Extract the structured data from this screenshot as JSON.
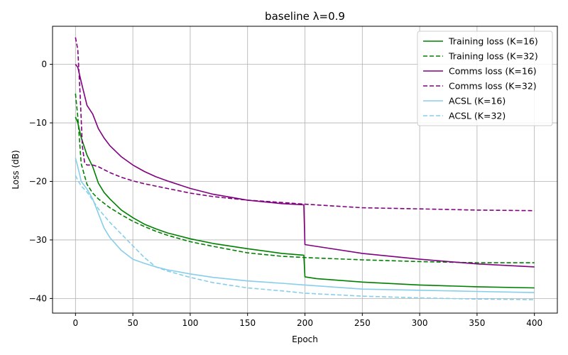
{
  "chart_data": {
    "type": "line",
    "title": "baseline λ=0.9",
    "xlabel": "Epoch",
    "ylabel": "Loss (dB)",
    "xlim": [
      -20,
      420
    ],
    "ylim": [
      -42.5,
      6.5
    ],
    "xticks": [
      0,
      50,
      100,
      150,
      200,
      250,
      300,
      350,
      400
    ],
    "yticks": [
      0,
      -10,
      -20,
      -30,
      -40
    ],
    "xtick_labels": [
      "0",
      "50",
      "100",
      "150",
      "200",
      "250",
      "300",
      "350",
      "400"
    ],
    "ytick_labels": [
      "0",
      "−10",
      "−20",
      "−30",
      "−40"
    ],
    "grid": true,
    "legend_position": "top-right",
    "series": [
      {
        "name": "Training loss (K=16)",
        "color": "#008000",
        "dash": "solid",
        "x": [
          0,
          2,
          5,
          10,
          15,
          20,
          25,
          30,
          40,
          50,
          60,
          70,
          80,
          100,
          120,
          150,
          180,
          199,
          200,
          210,
          250,
          300,
          350,
          400
        ],
        "y": [
          -9,
          -10,
          -12.5,
          -15.5,
          -17.5,
          -20.3,
          -21.9,
          -23.0,
          -24.9,
          -26.2,
          -27.3,
          -28.1,
          -28.8,
          -29.8,
          -30.6,
          -31.5,
          -32.3,
          -32.6,
          -36.3,
          -36.6,
          -37.2,
          -37.7,
          -38.0,
          -38.2
        ]
      },
      {
        "name": "Training loss (K=32)",
        "color": "#008000",
        "dash": "dashed",
        "x": [
          0,
          2,
          5,
          10,
          15,
          20,
          30,
          40,
          50,
          60,
          70,
          80,
          100,
          120,
          150,
          180,
          200,
          250,
          300,
          350,
          400
        ],
        "y": [
          -5,
          -9,
          -17,
          -20.5,
          -22,
          -23,
          -24.5,
          -25.7,
          -26.8,
          -27.7,
          -28.5,
          -29.2,
          -30.3,
          -31.1,
          -32.2,
          -32.8,
          -33.0,
          -33.4,
          -33.7,
          -33.9,
          -33.9
        ]
      },
      {
        "name": "Comms loss (K=16)",
        "color": "#800080",
        "dash": "solid",
        "x": [
          0,
          2,
          5,
          10,
          15,
          20,
          25,
          30,
          40,
          50,
          60,
          70,
          80,
          100,
          120,
          150,
          180,
          199,
          200,
          210,
          250,
          300,
          350,
          400
        ],
        "y": [
          0,
          -0.5,
          -3,
          -7,
          -8.5,
          -11,
          -12.6,
          -13.9,
          -15.8,
          -17.2,
          -18.3,
          -19.2,
          -19.9,
          -21.2,
          -22.2,
          -23.2,
          -23.8,
          -24.0,
          -30.8,
          -31.1,
          -32.3,
          -33.3,
          -34.1,
          -34.6
        ]
      },
      {
        "name": "Comms loss (K=32)",
        "color": "#800080",
        "dash": "dashed",
        "x": [
          0,
          2,
          4,
          6,
          8,
          10,
          15,
          20,
          30,
          40,
          50,
          60,
          70,
          80,
          100,
          120,
          150,
          180,
          200,
          250,
          300,
          350,
          400
        ],
        "y": [
          4.6,
          2.5,
          -5,
          -14,
          -16.8,
          -17.2,
          -17.2,
          -17.5,
          -18.5,
          -19.3,
          -19.9,
          -20.4,
          -20.8,
          -21.2,
          -22.0,
          -22.6,
          -23.2,
          -23.6,
          -23.9,
          -24.5,
          -24.7,
          -24.9,
          -25.0
        ]
      },
      {
        "name": "ACSL (K=16)",
        "color": "#87ceeb",
        "dash": "solid",
        "x": [
          0,
          2,
          5,
          10,
          15,
          20,
          25,
          30,
          40,
          50,
          60,
          70,
          80,
          100,
          120,
          150,
          180,
          200,
          250,
          300,
          350,
          400
        ],
        "y": [
          -16,
          -17.5,
          -20,
          -21.3,
          -23,
          -25.5,
          -28,
          -29.6,
          -31.8,
          -33.3,
          -34.0,
          -34.6,
          -35.1,
          -35.8,
          -36.4,
          -37.0,
          -37.4,
          -37.7,
          -38.4,
          -38.6,
          -38.8,
          -39.0
        ]
      },
      {
        "name": "ACSL (K=32)",
        "color": "#87ceeb",
        "dash": "dashed",
        "x": [
          0,
          2,
          5,
          10,
          15,
          20,
          30,
          40,
          50,
          60,
          70,
          80,
          100,
          120,
          150,
          180,
          200,
          250,
          300,
          350,
          400
        ],
        "y": [
          -19,
          -19.8,
          -20.8,
          -21.8,
          -23.2,
          -24.7,
          -27.0,
          -29.0,
          -31.0,
          -33.0,
          -34.6,
          -35.3,
          -36.4,
          -37.3,
          -38.2,
          -38.7,
          -39.1,
          -39.6,
          -39.9,
          -40.1,
          -40.2
        ]
      }
    ]
  }
}
